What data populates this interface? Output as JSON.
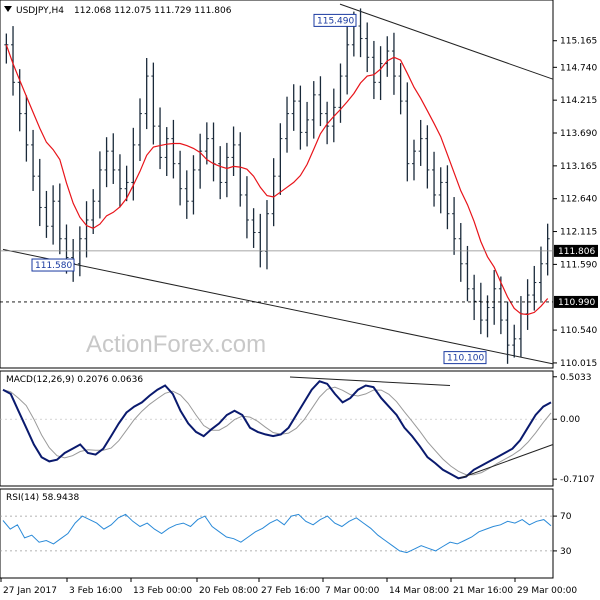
{
  "header": {
    "symbol": "USDJPY,H4",
    "ohlc": "112.068 112.075 111.729 111.806"
  },
  "watermark": "ActionForex.com",
  "chart_data": [
    {
      "type": "bar",
      "subtype": "ohlc",
      "title": "USDJPY,H4",
      "y_ticks": [
        "115.165",
        "114.740",
        "114.215",
        "113.690",
        "113.165",
        "112.640",
        "112.115",
        "111.590",
        "110.540",
        "110.015"
      ],
      "ylim": [
        109.95,
        115.8
      ],
      "x_ticks": [
        "27 Jan 2017",
        "3 Feb 16:00",
        "13 Feb 00:00",
        "20 Feb 08:00",
        "27 Feb 16:00",
        "7 Mar 00:00",
        "14 Mar 08:00",
        "21 Mar 16:00",
        "29 Mar 00:00"
      ],
      "current_price": {
        "label": "111.806",
        "value": 111.806
      },
      "support_level": {
        "label": "110.990",
        "value": 110.99
      },
      "annotations": [
        {
          "text": "115.490",
          "value": 115.49
        },
        {
          "text": "111.580",
          "value": 111.58
        },
        {
          "text": "110.100",
          "value": 110.1
        }
      ],
      "closes": [
        115.1,
        114.5,
        114.0,
        113.5,
        113.0,
        112.5,
        112.2,
        112.6,
        112.0,
        111.7,
        111.6,
        112.0,
        112.3,
        112.6,
        113.1,
        113.4,
        113.1,
        112.8,
        112.9,
        113.5,
        114.0,
        114.6,
        113.8,
        113.3,
        113.6,
        113.2,
        112.8,
        112.6,
        113.1,
        113.4,
        113.6,
        113.2,
        112.9,
        113.3,
        113.5,
        112.7,
        112.3,
        112.1,
        111.8,
        112.4,
        113.0,
        113.6,
        114.0,
        114.2,
        113.7,
        113.9,
        114.3,
        114.0,
        113.8,
        114.1,
        114.6,
        115.1,
        115.4,
        115.2,
        114.9,
        114.5,
        114.8,
        115.0,
        114.6,
        114.2,
        113.2,
        113.4,
        113.6,
        113.1,
        112.7,
        112.9,
        112.4,
        112.0,
        111.6,
        111.2,
        111.0,
        110.7,
        110.9,
        111.2,
        110.7,
        110.3,
        110.4,
        110.8,
        111.1,
        111.3,
        111.6,
        112.0
      ],
      "moving_average": {
        "series": "red"
      },
      "trendlines": "descending channel"
    },
    {
      "type": "line",
      "title": "MACD(12,26,9) 0.2076 0.0636",
      "y_ticks": [
        "0.5033",
        "0.00",
        "-0.7107"
      ],
      "ylim": [
        -0.78,
        0.56
      ],
      "macd": [
        0.35,
        0.3,
        0.1,
        -0.1,
        -0.3,
        -0.45,
        -0.5,
        -0.48,
        -0.4,
        -0.35,
        -0.3,
        -0.4,
        -0.42,
        -0.35,
        -0.2,
        -0.05,
        0.08,
        0.15,
        0.2,
        0.28,
        0.35,
        0.4,
        0.3,
        0.1,
        -0.05,
        -0.15,
        -0.2,
        -0.12,
        -0.05,
        0.05,
        0.1,
        0.05,
        -0.1,
        -0.15,
        -0.18,
        -0.2,
        -0.18,
        -0.1,
        0.05,
        0.2,
        0.35,
        0.45,
        0.42,
        0.3,
        0.2,
        0.25,
        0.35,
        0.4,
        0.38,
        0.25,
        0.15,
        0.05,
        -0.1,
        -0.2,
        -0.32,
        -0.45,
        -0.52,
        -0.6,
        -0.65,
        -0.7,
        -0.68,
        -0.6,
        -0.55,
        -0.5,
        -0.45,
        -0.4,
        -0.35,
        -0.25,
        -0.1,
        0.05,
        0.15,
        0.2
      ],
      "signal_color": "#9a9a9a",
      "macd_color": "#0a1a6e"
    },
    {
      "type": "line",
      "title": "RSI(14) 58.9438",
      "y_ticks": [
        "70",
        "30"
      ],
      "ylim": [
        0,
        100
      ],
      "levels": [
        70,
        30
      ],
      "rsi": [
        65,
        55,
        60,
        45,
        48,
        40,
        42,
        38,
        44,
        50,
        62,
        70,
        66,
        62,
        55,
        60,
        68,
        72,
        64,
        58,
        62,
        55,
        50,
        56,
        60,
        62,
        58,
        66,
        70,
        58,
        52,
        46,
        44,
        40,
        46,
        52,
        56,
        62,
        66,
        60,
        70,
        72,
        64,
        60,
        66,
        70,
        62,
        58,
        64,
        68,
        62,
        56,
        48,
        42,
        36,
        30,
        28,
        32,
        36,
        33,
        30,
        35,
        40,
        38,
        42,
        46,
        52,
        55,
        58,
        60,
        64,
        62,
        66,
        60,
        64,
        66,
        59
      ]
    }
  ]
}
